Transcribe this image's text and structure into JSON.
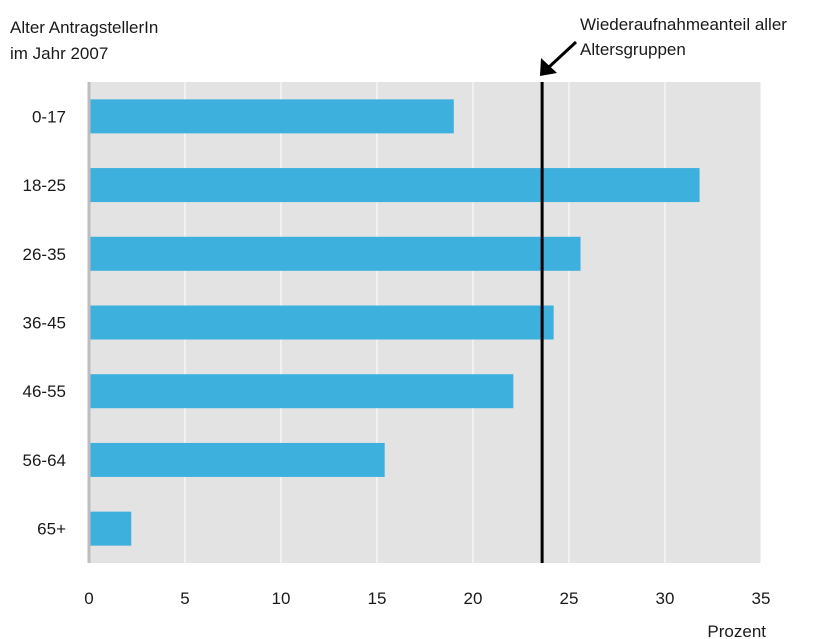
{
  "chart_data": {
    "type": "bar",
    "orientation": "horizontal",
    "title_lines": [
      "Alter AntragstellerIn",
      "im Jahr 2007"
    ],
    "xlabel": "Prozent",
    "categories": [
      "0-17",
      "18-25",
      "26-35",
      "36-45",
      "46-55",
      "56-64",
      "65+"
    ],
    "values": [
      19.0,
      31.8,
      25.6,
      24.2,
      22.1,
      15.4,
      2.2
    ],
    "xlim": [
      0,
      35
    ],
    "xticks": [
      0,
      5,
      10,
      15,
      20,
      25,
      30,
      35
    ],
    "grid": true,
    "bar_color": "#3db0de",
    "plot_background": "#e3e3e4",
    "reference_line": {
      "value": 23.6,
      "label_lines": [
        "Wiederaufnahmeanteil aller",
        "Altersgruppen"
      ]
    }
  }
}
